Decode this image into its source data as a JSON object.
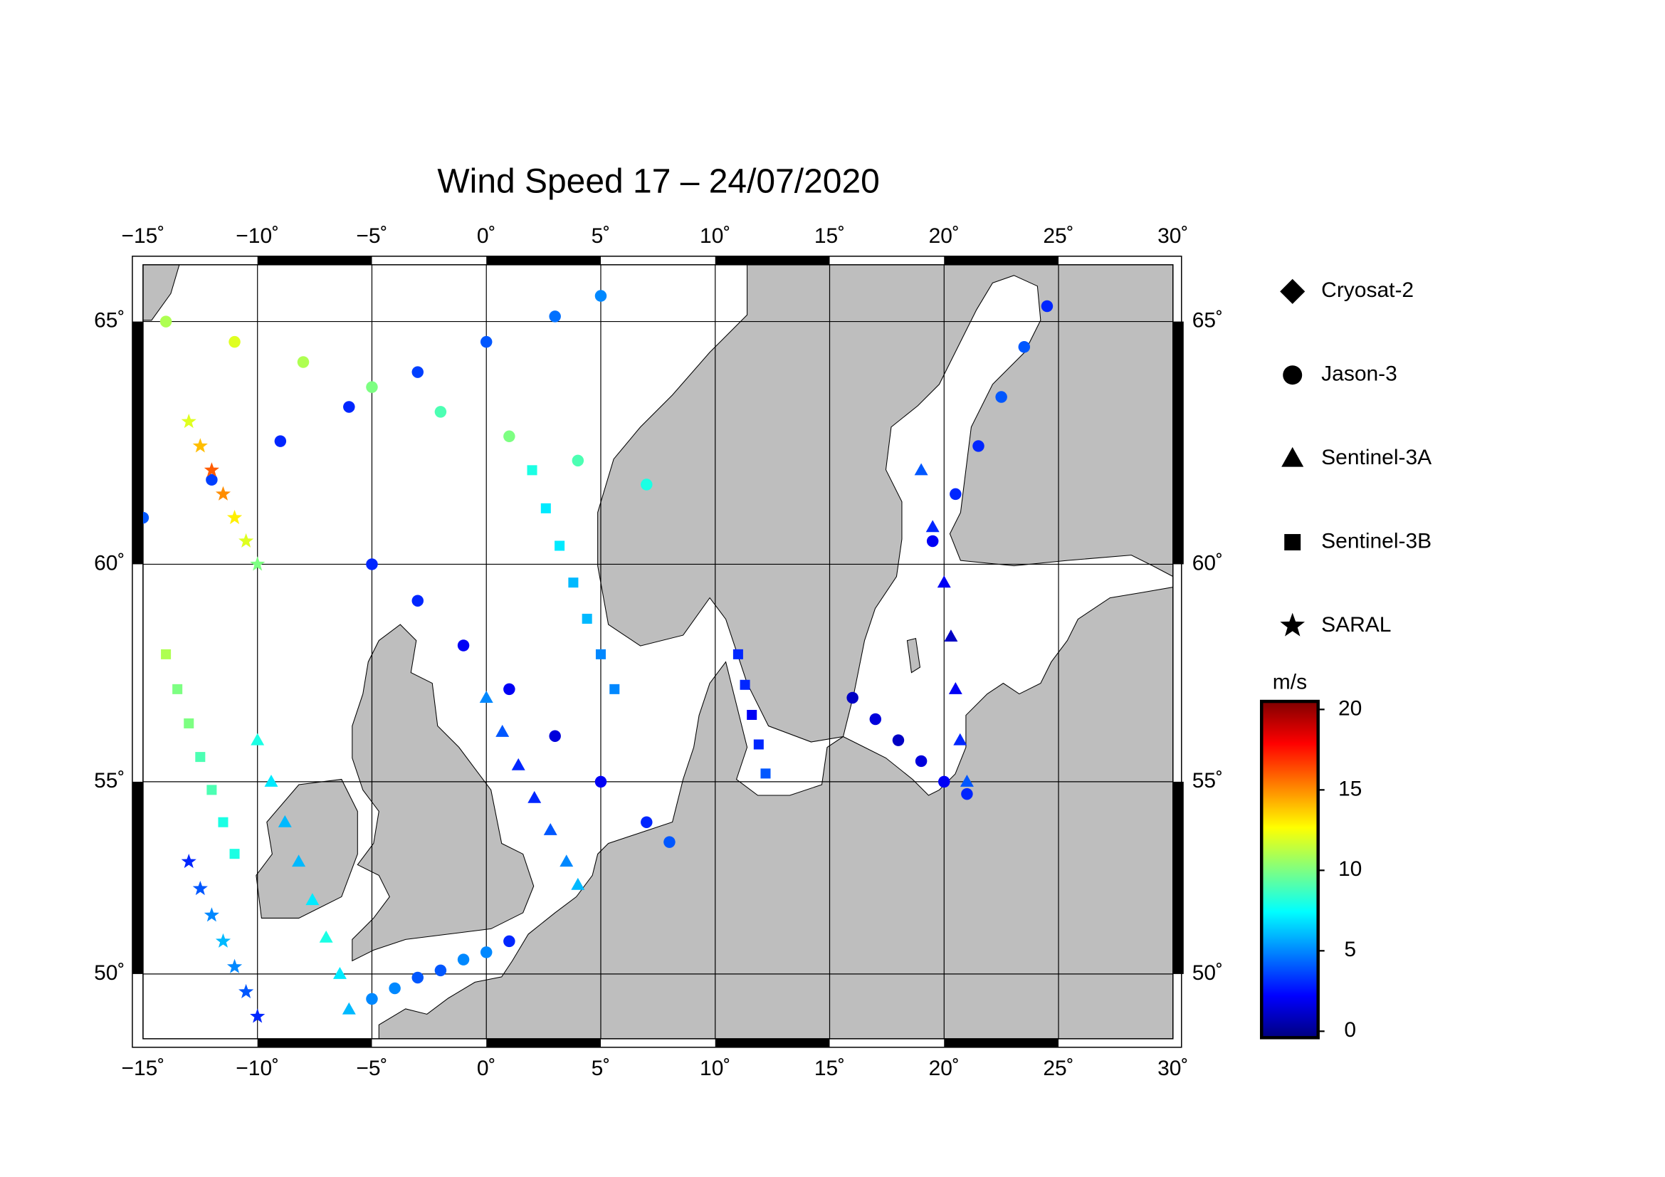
{
  "chart_data": {
    "type": "map",
    "title": "Wind Speed 17 – 24/07/2020",
    "xlim": [
      -15,
      30
    ],
    "ylim": [
      48.15,
      66.1
    ],
    "xticks": [
      {
        "value": -15,
        "label": "−15˚"
      },
      {
        "value": -10,
        "label": "−10˚"
      },
      {
        "value": -5,
        "label": "−5˚"
      },
      {
        "value": 0,
        "label": "0˚"
      },
      {
        "value": 5,
        "label": "5˚"
      },
      {
        "value": 10,
        "label": "10˚"
      },
      {
        "value": 15,
        "label": "15˚"
      },
      {
        "value": 20,
        "label": "20˚"
      },
      {
        "value": 25,
        "label": "25˚"
      },
      {
        "value": 30,
        "label": "30˚"
      }
    ],
    "yticks": [
      {
        "value": 50,
        "label": "50˚"
      },
      {
        "value": 55,
        "label": "55˚"
      },
      {
        "value": 60,
        "label": "60˚"
      },
      {
        "value": 65,
        "label": "65˚"
      }
    ],
    "grid": true,
    "colorbar": {
      "label": "m/s",
      "lim": [
        -0.4,
        20.5
      ],
      "ticks": [
        0,
        5,
        10,
        15,
        20
      ],
      "colormap": "jet"
    },
    "series": [
      {
        "name": "Cryosat-2",
        "marker": "diamond",
        "tracks": []
      },
      {
        "name": "Jason-3",
        "marker": "circle",
        "tracks": [
          {
            "lon": [
              -5,
              -3,
              -1,
              1,
              3,
              5,
              7,
              8
            ],
            "lat": [
              60,
              59.2,
              58.2,
              57.2,
              56.1,
              55,
              54,
              53.5
            ],
            "wind": [
              3,
              3,
              2,
              2,
              1.5,
              2,
              3,
              4
            ]
          },
          {
            "lon": [
              -15,
              -12,
              -9,
              -6,
              -3,
              0,
              3,
              5
            ],
            "lat": [
              61,
              61.8,
              62.6,
              63.3,
              64,
              64.6,
              65.1,
              65.5
            ],
            "wind": [
              4,
              3.5,
              3,
              3,
              3.5,
              4,
              4.5,
              5
            ]
          },
          {
            "lon": [
              -14,
              -11,
              -8,
              -5,
              -2,
              1,
              4,
              7
            ],
            "lat": [
              65,
              64.6,
              64.2,
              63.7,
              63.2,
              62.7,
              62.2,
              61.7
            ],
            "wind": [
              11,
              12,
              11,
              10,
              9,
              10,
              9,
              8
            ]
          },
          {
            "lon": [
              16,
              17,
              18,
              19,
              20,
              21
            ],
            "lat": [
              57,
              56.5,
              56,
              55.5,
              55,
              54.7
            ],
            "wind": [
              1,
              1.5,
              1,
              1.5,
              2,
              3
            ]
          },
          {
            "lon": [
              19.5,
              20.5,
              21.5,
              22.5,
              23.5,
              24.5
            ],
            "lat": [
              60.5,
              61.5,
              62.5,
              63.5,
              64.5,
              65.3
            ],
            "wind": [
              2,
              3,
              3,
              4,
              4,
              3
            ]
          },
          {
            "lon": [
              -5,
              -4,
              -3,
              -2,
              -1,
              0,
              1
            ],
            "lat": [
              49.3,
              49.6,
              49.9,
              50.1,
              50.4,
              50.6,
              50.9
            ],
            "wind": [
              5,
              5,
              4,
              4,
              5,
              5,
              3
            ]
          }
        ]
      },
      {
        "name": "Sentinel-3A",
        "marker": "triangle",
        "tracks": [
          {
            "lon": [
              0,
              0.7,
              1.4,
              2.1,
              2.8,
              3.5,
              4
            ],
            "lat": [
              57,
              56.2,
              55.4,
              54.6,
              53.8,
              53,
              52.4
            ],
            "wind": [
              5,
              4,
              3,
              3,
              4,
              5,
              6
            ]
          },
          {
            "lon": [
              -10,
              -9.4,
              -8.8,
              -8.2,
              -7.6,
              -7,
              -6.4,
              -6
            ],
            "lat": [
              56,
              55,
              54,
              53,
              52,
              51,
              50,
              49
            ],
            "wind": [
              8,
              7,
              6,
              6,
              7,
              8,
              7,
              6
            ]
          },
          {
            "lon": [
              19,
              19.5,
              20,
              20.3,
              20.5,
              20.7,
              21
            ],
            "lat": [
              62,
              60.8,
              59.6,
              58.4,
              57.2,
              56,
              55
            ],
            "wind": [
              4,
              3,
              2,
              1,
              2,
              3,
              4
            ]
          }
        ]
      },
      {
        "name": "Sentinel-3B",
        "marker": "square",
        "tracks": [
          {
            "lon": [
              2,
              2.6,
              3.2,
              3.8,
              4.4,
              5,
              5.6
            ],
            "lat": [
              62,
              61.2,
              60.4,
              59.6,
              58.8,
              58,
              57.2
            ],
            "wind": [
              8,
              7,
              7,
              6,
              6,
              5,
              5
            ]
          },
          {
            "lon": [
              11,
              11.3,
              11.6,
              11.9,
              12.2
            ],
            "lat": [
              58,
              57.3,
              56.6,
              55.9,
              55.2
            ],
            "wind": [
              3,
              3,
              2,
              3,
              4
            ]
          },
          {
            "lon": [
              -14,
              -13.5,
              -13,
              -12.5,
              -12,
              -11.5,
              -11
            ],
            "lat": [
              58,
              57.2,
              56.4,
              55.6,
              54.8,
              54,
              53.2
            ],
            "wind": [
              11,
              10,
              10,
              9,
              9,
              8,
              8
            ]
          }
        ]
      },
      {
        "name": "SARAL",
        "marker": "star",
        "tracks": [
          {
            "lon": [
              -13,
              -12.5,
              -12,
              -11.5,
              -11,
              -10.5,
              -10
            ],
            "lat": [
              63,
              62.5,
              62,
              61.5,
              61,
              60.5,
              60
            ],
            "wind": [
              12,
              14,
              16,
              15,
              13,
              12,
              10
            ]
          },
          {
            "lon": [
              -13,
              -12.5,
              -12,
              -11.5,
              -11,
              -10.5,
              -10
            ],
            "lat": [
              53,
              52.3,
              51.6,
              50.9,
              50.2,
              49.5,
              48.8
            ],
            "wind": [
              3,
              4,
              5,
              6,
              5,
              4,
              3
            ]
          }
        ]
      }
    ]
  }
}
